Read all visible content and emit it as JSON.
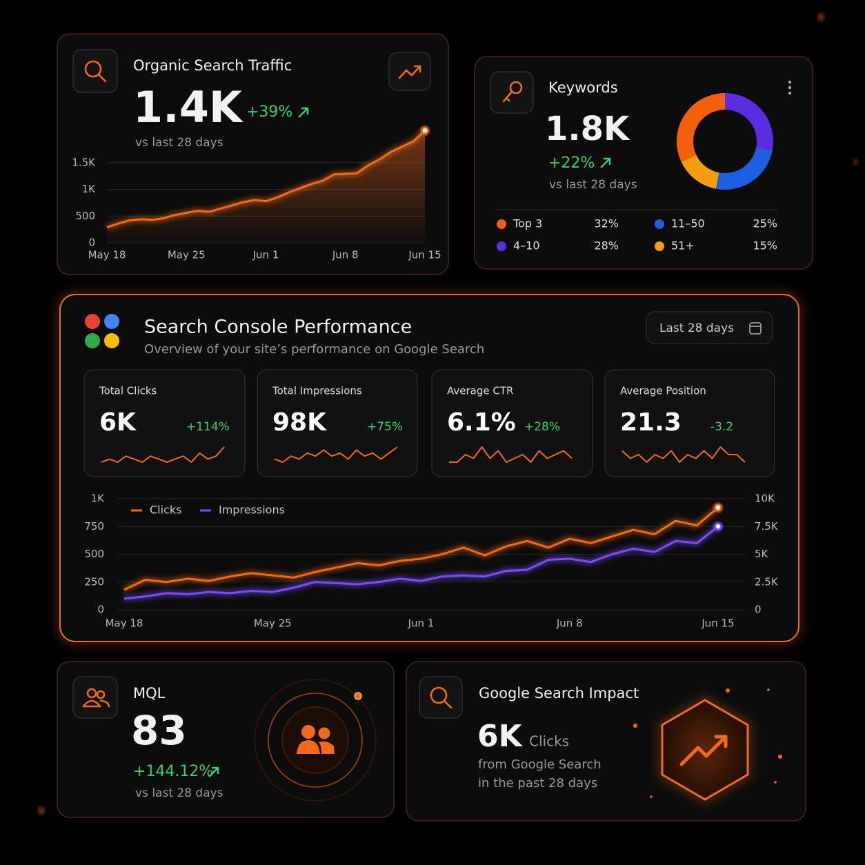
{
  "organic": {
    "title": "Organic Search Traffic",
    "total": "1.4K",
    "change": "+39%",
    "period": "vs last 28 days"
  },
  "keywords": {
    "title": "Keywords",
    "total": "1.8K",
    "change": "+22%",
    "period": "vs last 28 days"
  },
  "console": {
    "title": "Search Console Performance",
    "subtitle": "Overview of your site’s performance on Google Search",
    "range_button": "Last 28 days"
  },
  "metrics": [
    {
      "label": "Total Clicks",
      "value": "6K",
      "change": "+114%"
    },
    {
      "label": "Total Impressions",
      "value": "98K",
      "change": "+75%"
    },
    {
      "label": "Average CTR",
      "value": "6.1%",
      "change": "+28%"
    },
    {
      "label": "Average Position",
      "value": "21.3",
      "change": "-3.2"
    }
  ],
  "mql": {
    "title": "MQL",
    "value": "83",
    "change": "+144.12%",
    "period": "vs last 28 days"
  },
  "impact": {
    "title": "Google Search Impact",
    "value": "6K",
    "unit": "Clicks",
    "line1": "from Google Search",
    "line2": "in the past 28 days"
  },
  "chart_data": [
    {
      "type": "line",
      "area": true,
      "grid": true,
      "color": "#f26b1d",
      "categories": [
        "May 18",
        null,
        null,
        null,
        null,
        null,
        null,
        "May 25",
        null,
        null,
        null,
        null,
        null,
        null,
        "Jun 1",
        null,
        null,
        null,
        null,
        null,
        null,
        "Jun 8",
        null,
        null,
        null,
        null,
        null,
        null,
        "Jun 15"
      ],
      "values": [
        290,
        360,
        420,
        440,
        430,
        460,
        520,
        560,
        600,
        580,
        640,
        700,
        760,
        800,
        780,
        850,
        940,
        1020,
        1100,
        1160,
        1280,
        1290,
        1300,
        1450,
        1560,
        1700,
        1800,
        1900,
        2100
      ],
      "ylim": [
        0,
        2000
      ],
      "yticks": [
        0,
        500,
        {
          "value": 1000,
          "label": "1K"
        },
        {
          "value": 1500,
          "label": "1.5K"
        }
      ]
    },
    {
      "type": "pie",
      "categories": [
        "Top 3",
        "4–10",
        "11–50",
        "51+"
      ],
      "values": [
        32,
        28,
        25,
        15
      ],
      "value_labels": [
        "32%",
        "28%",
        "25%",
        "15%"
      ],
      "colors": [
        "#f2600c",
        "#5b2de0",
        "#1d5fe0",
        "#f59e0b"
      ]
    },
    {
      "type": "line",
      "grid": true,
      "legend": true,
      "categories": [
        "May 18",
        null,
        null,
        null,
        null,
        null,
        null,
        "May 25",
        null,
        null,
        null,
        null,
        null,
        null,
        "Jun 1",
        null,
        null,
        null,
        null,
        null,
        null,
        "Jun 8",
        null,
        null,
        null,
        null,
        null,
        null,
        "Jun 15"
      ],
      "series": [
        {
          "name": "Clicks",
          "color": "#f26b1d",
          "values": [
            180,
            270,
            250,
            280,
            260,
            300,
            330,
            310,
            290,
            340,
            380,
            420,
            400,
            440,
            460,
            500,
            560,
            490,
            570,
            620,
            560,
            640,
            600,
            660,
            720,
            680,
            800,
            760,
            920
          ]
        },
        {
          "name": "Impressions",
          "color": "#7c4dff",
          "axis": "y2",
          "values": [
            1000,
            1200,
            1500,
            1400,
            1600,
            1500,
            1700,
            1600,
            2000,
            2500,
            2400,
            2300,
            2500,
            2800,
            2600,
            3000,
            3100,
            3000,
            3500,
            3600,
            4500,
            4600,
            4300,
            5000,
            5500,
            5200,
            6200,
            6000,
            7500
          ]
        }
      ],
      "ylim": [
        0,
        1000
      ],
      "yticks": [
        0,
        250,
        500,
        750,
        {
          "value": 1000,
          "label": "1K"
        }
      ],
      "y2lim": [
        0,
        10000
      ],
      "y2ticks": [
        0,
        {
          "value": 2500,
          "label": "2.5K"
        },
        {
          "value": 5000,
          "label": "5K"
        },
        {
          "value": 7500,
          "label": "7.5K"
        },
        {
          "value": 10000,
          "label": "10K"
        }
      ]
    },
    {
      "type": "line",
      "color": "#f26b1d",
      "values": [
        3,
        4,
        3,
        5,
        4,
        3,
        5,
        4,
        3,
        4,
        5,
        3,
        6,
        4,
        5,
        8
      ]
    },
    {
      "type": "line",
      "color": "#f26b1d",
      "values": [
        3,
        2,
        4,
        3,
        5,
        4,
        6,
        4,
        5,
        3,
        6,
        4,
        5,
        3,
        5,
        7
      ]
    },
    {
      "type": "line",
      "color": "#f26b1d",
      "values": [
        3,
        3,
        5,
        4,
        7,
        4,
        6,
        3,
        4,
        5,
        3,
        6,
        4,
        5,
        6,
        4
      ]
    },
    {
      "type": "line",
      "color": "#f26b1d",
      "values": [
        5,
        3,
        4,
        2,
        4,
        3,
        5,
        2,
        4,
        3,
        5,
        3,
        6,
        4,
        4,
        2
      ]
    }
  ]
}
